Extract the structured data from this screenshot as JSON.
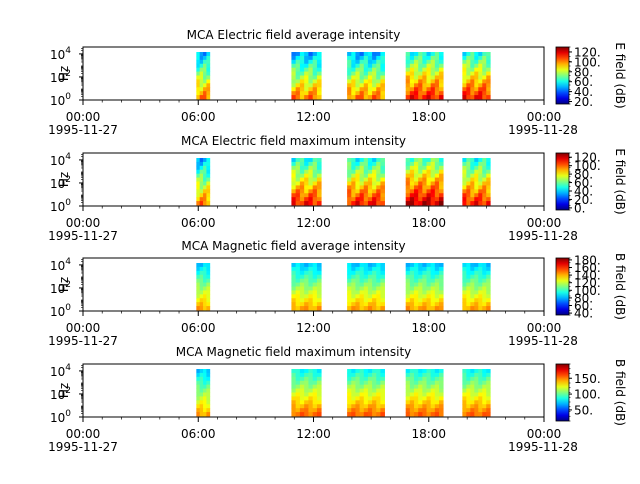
{
  "chart_data": [
    {
      "type": "heatmap",
      "title": "MCA  Electric field average intensity",
      "ylabel": "Hz",
      "y_scale": "log",
      "y_ticks": [
        {
          "base": "10",
          "exp": "0"
        },
        {
          "base": "10",
          "exp": "2"
        },
        {
          "base": "10",
          "exp": "4"
        }
      ],
      "x_ticks": [
        "00:00",
        "06:00",
        "12:00",
        "18:00",
        "00:00"
      ],
      "x_date_start": "1995-11-27",
      "x_date_end": "1995-11-28",
      "xlim_hours": [
        0,
        24
      ],
      "colorbar": {
        "label": "E field (dB)",
        "ticks": [
          "20.",
          "40.",
          "60.",
          "80.",
          "100.",
          "120."
        ],
        "range": [
          15,
          130
        ]
      },
      "segments": [
        {
          "start": 5.9,
          "end": 6.6,
          "intensity": "medium"
        },
        {
          "start": 10.85,
          "end": 12.4,
          "intensity": "medium"
        },
        {
          "start": 13.75,
          "end": 15.7,
          "intensity": "medium"
        },
        {
          "start": 16.8,
          "end": 18.75,
          "intensity": "medium-high"
        },
        {
          "start": 19.75,
          "end": 21.2,
          "intensity": "medium-high"
        }
      ]
    },
    {
      "type": "heatmap",
      "title": "MCA  Electric field maximum intensity",
      "ylabel": "Hz",
      "y_scale": "log",
      "y_ticks": [
        {
          "base": "10",
          "exp": "0"
        },
        {
          "base": "10",
          "exp": "2"
        },
        {
          "base": "10",
          "exp": "4"
        }
      ],
      "x_ticks": [
        "00:00",
        "06:00",
        "12:00",
        "18:00",
        "00:00"
      ],
      "x_date_start": "1995-11-27",
      "x_date_end": "1995-11-28",
      "xlim_hours": [
        0,
        24
      ],
      "colorbar": {
        "label": "E field (dB)",
        "ticks": [
          "0.",
          "20.",
          "40.",
          "60.",
          "80.",
          "100.",
          "120."
        ],
        "range": [
          -5,
          130
        ]
      },
      "segments": [
        {
          "start": 5.9,
          "end": 6.6,
          "intensity": "medium"
        },
        {
          "start": 10.85,
          "end": 12.4,
          "intensity": "medium-high"
        },
        {
          "start": 13.75,
          "end": 15.7,
          "intensity": "medium-high"
        },
        {
          "start": 16.8,
          "end": 18.75,
          "intensity": "high"
        },
        {
          "start": 19.75,
          "end": 21.2,
          "intensity": "medium-high"
        }
      ]
    },
    {
      "type": "heatmap",
      "title": "MCA  Magnetic field average intensity",
      "ylabel": "Hz",
      "y_scale": "log",
      "y_ticks": [
        {
          "base": "10",
          "exp": "0"
        },
        {
          "base": "10",
          "exp": "2"
        },
        {
          "base": "10",
          "exp": "4"
        }
      ],
      "x_ticks": [
        "00:00",
        "06:00",
        "12:00",
        "18:00",
        "00:00"
      ],
      "x_date_start": "1995-11-27",
      "x_date_end": "1995-11-28",
      "xlim_hours": [
        0,
        24
      ],
      "colorbar": {
        "label": "B field (dB)",
        "ticks": [
          "40.",
          "60.",
          "80.",
          "100.",
          "120.",
          "140.",
          "160.",
          "180."
        ],
        "range": [
          35,
          185
        ]
      },
      "segments": [
        {
          "start": 5.9,
          "end": 6.6,
          "intensity": "medium"
        },
        {
          "start": 10.85,
          "end": 12.4,
          "intensity": "medium"
        },
        {
          "start": 13.75,
          "end": 15.7,
          "intensity": "medium"
        },
        {
          "start": 16.8,
          "end": 18.75,
          "intensity": "medium"
        },
        {
          "start": 19.75,
          "end": 21.2,
          "intensity": "medium"
        }
      ]
    },
    {
      "type": "heatmap",
      "title": "MCA  Magnetic field maximum intensity",
      "ylabel": "Hz",
      "y_scale": "log",
      "y_ticks": [
        {
          "base": "10",
          "exp": "0"
        },
        {
          "base": "10",
          "exp": "2"
        },
        {
          "base": "10",
          "exp": "4"
        }
      ],
      "x_ticks": [
        "00:00",
        "06:00",
        "12:00",
        "18:00",
        "00:00"
      ],
      "x_date_start": "1995-11-27",
      "x_date_end": "1995-11-28",
      "xlim_hours": [
        0,
        24
      ],
      "colorbar": {
        "label": "B field (dB)",
        "ticks": [
          "50.",
          "100.",
          "150."
        ],
        "range": [
          15,
          195
        ]
      },
      "segments": [
        {
          "start": 5.9,
          "end": 6.6,
          "intensity": "medium"
        },
        {
          "start": 10.85,
          "end": 12.4,
          "intensity": "medium-high"
        },
        {
          "start": 13.75,
          "end": 15.7,
          "intensity": "medium-high"
        },
        {
          "start": 16.8,
          "end": 18.75,
          "intensity": "medium-high"
        },
        {
          "start": 19.75,
          "end": 21.2,
          "intensity": "medium-high"
        }
      ]
    }
  ]
}
